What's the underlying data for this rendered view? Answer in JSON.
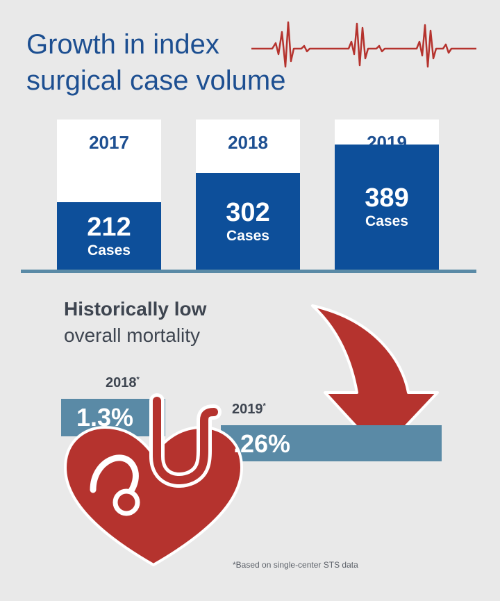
{
  "title": {
    "line1": "Growth in index",
    "line2": "surgical case volume"
  },
  "icons": {
    "ekg": "heartbeat-line-icon",
    "heart": "heart-stethoscope-icon",
    "arrow": "down-arrow-icon"
  },
  "colors": {
    "title_blue": "#1d4f91",
    "bar_blue": "#0d4f9a",
    "slate": "#5a8aa6",
    "red": "#b5332e",
    "background": "#e9e9e9"
  },
  "chart_data": [
    {
      "type": "bar",
      "categories": [
        "2017",
        "2018",
        "2019"
      ],
      "values": [
        212,
        302,
        389
      ],
      "value_labels": [
        "212",
        "302",
        "389"
      ],
      "unit_label": "Cases",
      "ylim": [
        0,
        467
      ]
    },
    {
      "type": "bar",
      "title": "Historically low",
      "subtitle": "overall mortality",
      "categories": [
        "2018",
        "2019"
      ],
      "values": [
        1.3,
        0.26
      ],
      "value_labels": [
        "1.3%",
        ".26%"
      ],
      "asterisk": "*",
      "footnote": "*Based on single-center STS data"
    }
  ]
}
